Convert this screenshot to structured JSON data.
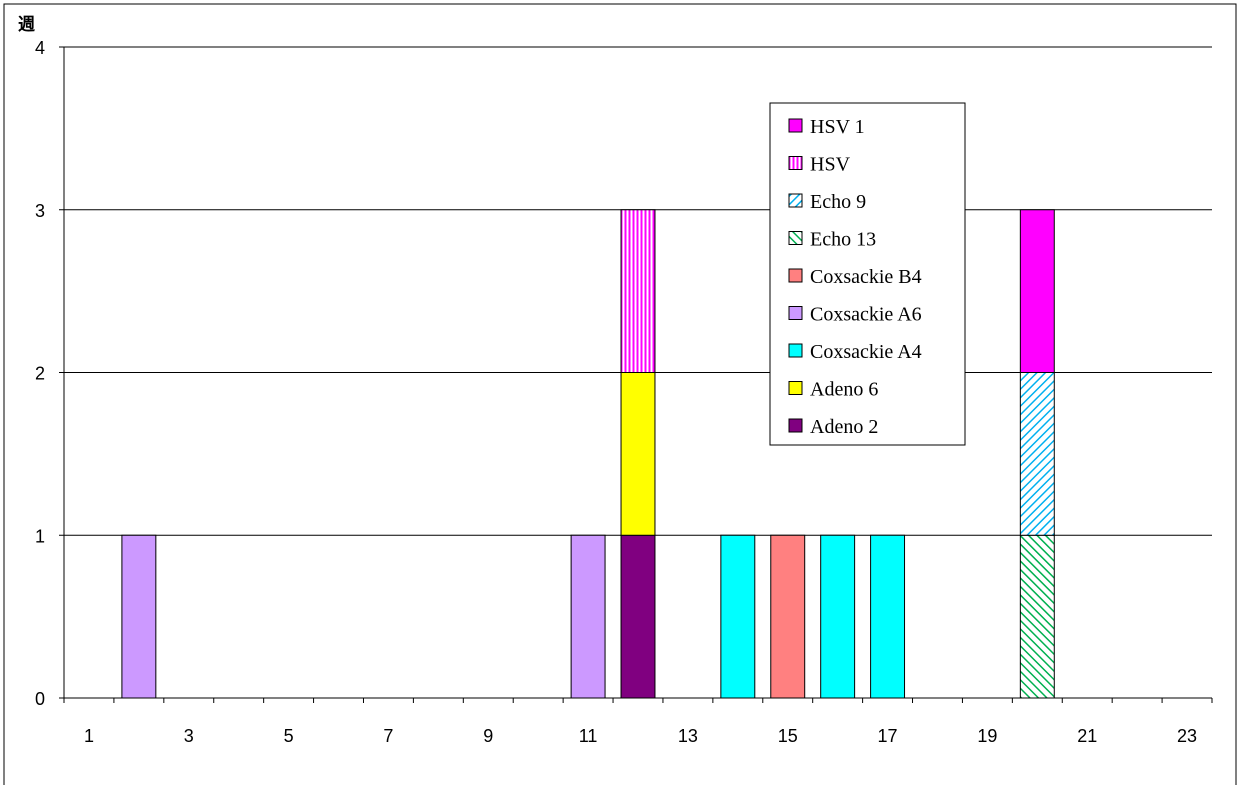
{
  "chart_data": {
    "type": "bar",
    "stacked": true,
    "ylabel": "週",
    "xlabel": "",
    "ylim": [
      0,
      4
    ],
    "xlim": [
      1,
      23
    ],
    "x_tick_labels": [
      "1",
      "3",
      "5",
      "7",
      "9",
      "11",
      "13",
      "15",
      "17",
      "19",
      "21",
      "23"
    ],
    "y_tick_labels": [
      "0",
      "1",
      "2",
      "3",
      "4"
    ],
    "grid": true,
    "legend_position": "top-right",
    "series": [
      {
        "name": "HSV 1",
        "color": "#ff00ff",
        "pattern": "solid",
        "points": [
          {
            "x": 20,
            "y": 1
          }
        ]
      },
      {
        "name": "HSV",
        "color": "#ff00ff",
        "pattern": "vertical-lines",
        "points": [
          {
            "x": 12,
            "y": 1
          }
        ]
      },
      {
        "name": "Echo 9",
        "color": "#00b0f0",
        "pattern": "diagonal-down",
        "points": [
          {
            "x": 20,
            "y": 1
          }
        ]
      },
      {
        "name": "Echo 13",
        "color": "#00b050",
        "pattern": "diagonal-up",
        "points": [
          {
            "x": 20,
            "y": 1
          }
        ]
      },
      {
        "name": "Coxsackie B4",
        "color": "#ff8080",
        "pattern": "solid",
        "points": [
          {
            "x": 15,
            "y": 1
          }
        ]
      },
      {
        "name": "Coxsackie A6",
        "color": "#cc99ff",
        "pattern": "solid",
        "points": [
          {
            "x": 2,
            "y": 1
          },
          {
            "x": 11,
            "y": 1
          }
        ]
      },
      {
        "name": "Coxsackie A4",
        "color": "#00ffff",
        "pattern": "solid",
        "points": [
          {
            "x": 14,
            "y": 1
          },
          {
            "x": 16,
            "y": 1
          },
          {
            "x": 17,
            "y": 1
          }
        ]
      },
      {
        "name": "Adeno 6",
        "color": "#ffff00",
        "pattern": "solid",
        "points": [
          {
            "x": 12,
            "y": 1
          }
        ]
      },
      {
        "name": "Adeno 2",
        "color": "#800080",
        "pattern": "solid",
        "points": [
          {
            "x": 12,
            "y": 1
          }
        ]
      }
    ]
  }
}
